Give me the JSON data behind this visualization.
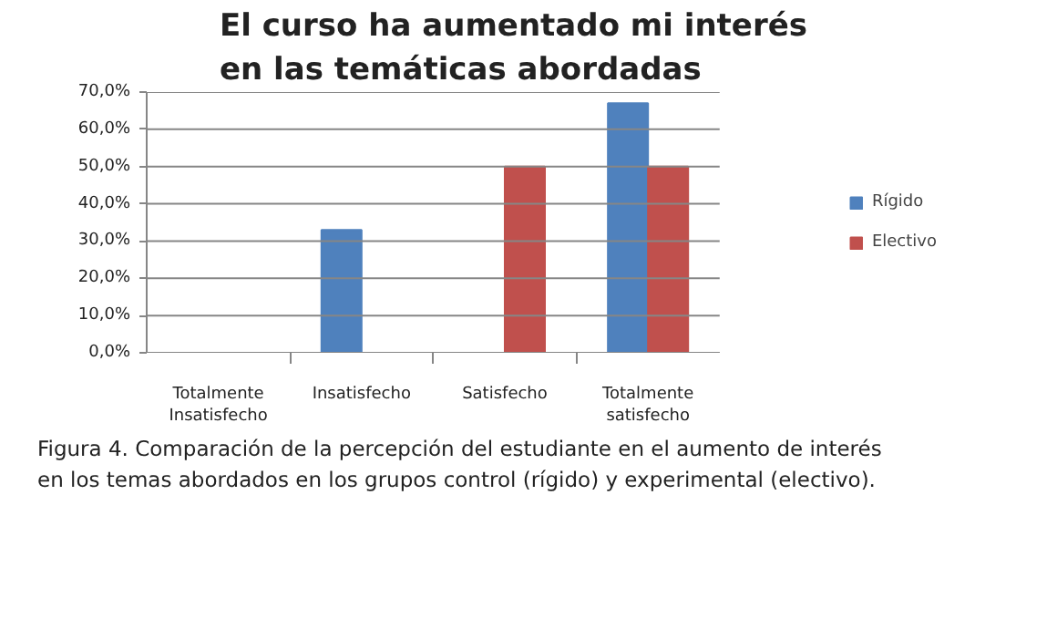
{
  "chart_data": {
    "type": "bar",
    "title": "El curso ha aumentado mi interés en las temáticas abordadas",
    "categories": [
      "Totalmente Insatisfecho",
      "Insatisfecho",
      "Satisfecho",
      "Totalmente satisfecho"
    ],
    "series": [
      {
        "name": "Rígido",
        "color": "#4f81bd",
        "values": [
          0,
          33,
          0,
          67
        ]
      },
      {
        "name": "Electivo",
        "color": "#c0504d",
        "values": [
          0,
          0,
          50,
          50
        ]
      }
    ],
    "ylim": [
      0,
      70
    ],
    "yticks": [
      {
        "value": 0,
        "label": "0,0%"
      },
      {
        "value": 10,
        "label": "10,0%"
      },
      {
        "value": 20,
        "label": "20,0%"
      },
      {
        "value": 30,
        "label": "30,0%"
      },
      {
        "value": 40,
        "label": "40,0%"
      },
      {
        "value": 50,
        "label": "50,0%"
      },
      {
        "value": 60,
        "label": "60,0%"
      },
      {
        "value": 70,
        "label": "70,0%"
      }
    ],
    "grid": "y",
    "legend": "right",
    "annotations": [
      "Figura 4. Comparación de la percepción del estudiante en el aumento de interés en los temas abordados en los grupos control (rígido) y experimental (electivo)."
    ]
  }
}
